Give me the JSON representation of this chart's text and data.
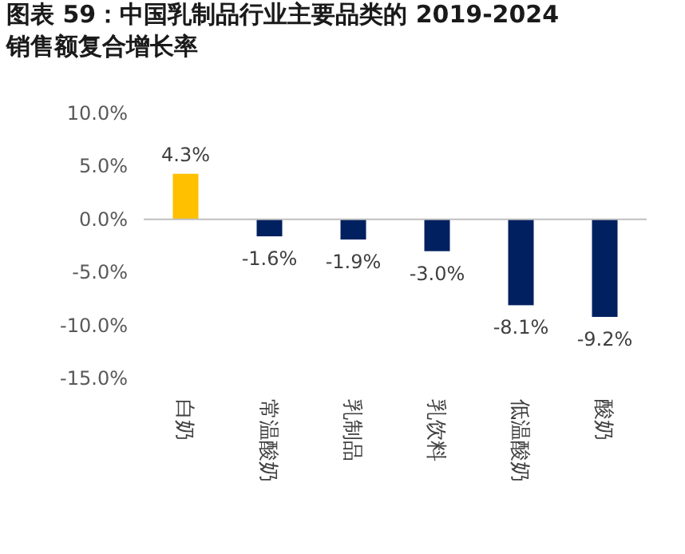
{
  "chart_data": {
    "type": "bar",
    "title": "图表 59：中国乳制品行业主要品类的 2019-2024 销售额复合增长率",
    "categories": [
      "白奶",
      "常温酸奶",
      "乳制品",
      "乳饮料",
      "低温酸奶",
      "酸奶"
    ],
    "values": [
      4.3,
      -1.6,
      -1.9,
      -3.0,
      -8.1,
      -9.2
    ],
    "colors": [
      "#ffc000",
      "#002060",
      "#002060",
      "#002060",
      "#002060",
      "#002060"
    ],
    "value_labels": [
      "4.3%",
      "-1.6%",
      "-1.9%",
      "-3.0%",
      "-8.1%",
      "-9.2%"
    ],
    "ylim": [
      -15,
      10
    ],
    "yticks": [
      {
        "value": 10,
        "label": "10.0%"
      },
      {
        "value": 5,
        "label": "5.0%"
      },
      {
        "value": 0,
        "label": "0.0%"
      },
      {
        "value": -5,
        "label": "-5.0%"
      },
      {
        "value": -10,
        "label": "-10.0%"
      },
      {
        "value": -15,
        "label": "-15.0%"
      }
    ]
  }
}
